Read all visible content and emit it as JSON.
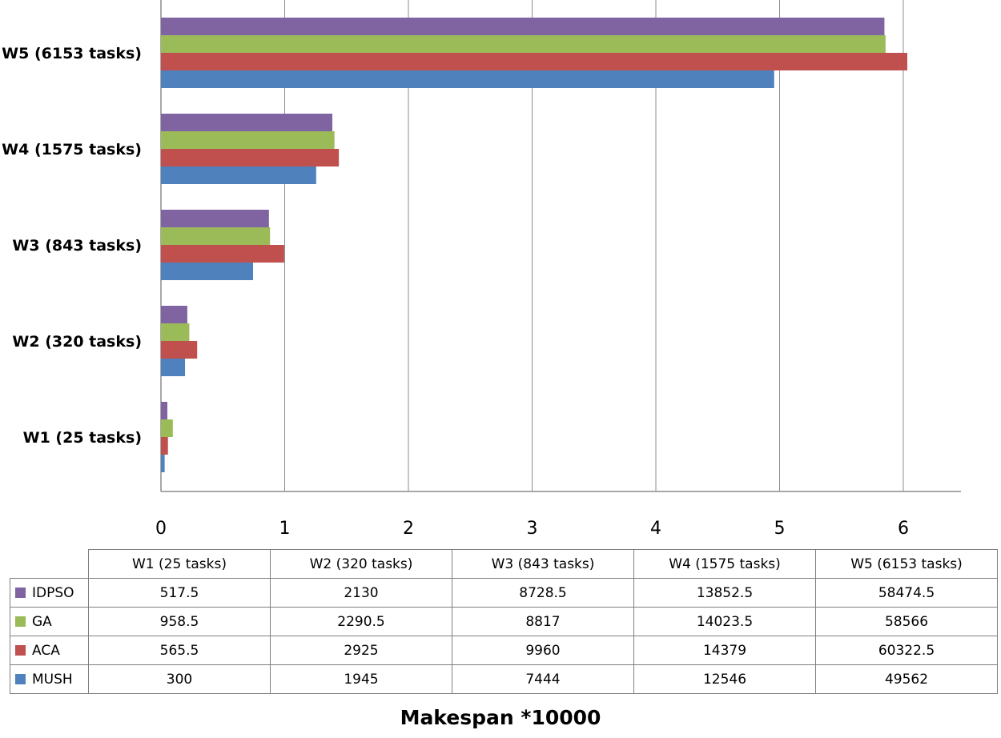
{
  "chart_data": {
    "type": "bar",
    "orientation": "horizontal",
    "categories": [
      "W1 (25 tasks)",
      "W2 (320 tasks)",
      "W3  (843 tasks)",
      "W4  (1575 tasks)",
      "W5  (6153 tasks)"
    ],
    "series": [
      {
        "name": "IDPSO",
        "color": "#8064A2",
        "values": [
          517.5,
          2130,
          8728.5,
          13852.5,
          58474.5
        ]
      },
      {
        "name": "GA",
        "color": "#9BBB59",
        "values": [
          958.5,
          2290.5,
          8817,
          14023.5,
          58566
        ]
      },
      {
        "name": "ACA",
        "color": "#C0504D",
        "values": [
          565.5,
          2925,
          9960,
          14379,
          60322.5
        ]
      },
      {
        "name": "MUSH",
        "color": "#4F81BD",
        "values": [
          300,
          1945,
          7444,
          12546,
          49562
        ]
      }
    ],
    "axis_scale": 10000,
    "xlim": [
      0,
      6.5
    ],
    "xticks": [
      "0",
      "1",
      "2",
      "3",
      "4",
      "5",
      "6"
    ],
    "xlabel": "Makespan *10000",
    "grid": true,
    "data_table": {
      "columns": [
        "W1 (25 tasks)",
        "W2 (320 tasks)",
        "W3  (843 tasks)",
        "W4  (1575 tasks)",
        "W5  (6153 tasks)"
      ],
      "rows": [
        {
          "label": "IDPSO",
          "color": "#8064A2",
          "cells": [
            "517.5",
            "2130",
            "8728.5",
            "13852.5",
            "58474.5"
          ]
        },
        {
          "label": "GA",
          "color": "#9BBB59",
          "cells": [
            "958.5",
            "2290.5",
            "8817",
            "14023.5",
            "58566"
          ]
        },
        {
          "label": "ACA",
          "color": "#C0504D",
          "cells": [
            "565.5",
            "2925",
            "9960",
            "14379",
            "60322.5"
          ]
        },
        {
          "label": "MUSH",
          "color": "#4F81BD",
          "cells": [
            "300",
            "1945",
            "7444",
            "12546",
            "49562"
          ]
        }
      ]
    }
  }
}
